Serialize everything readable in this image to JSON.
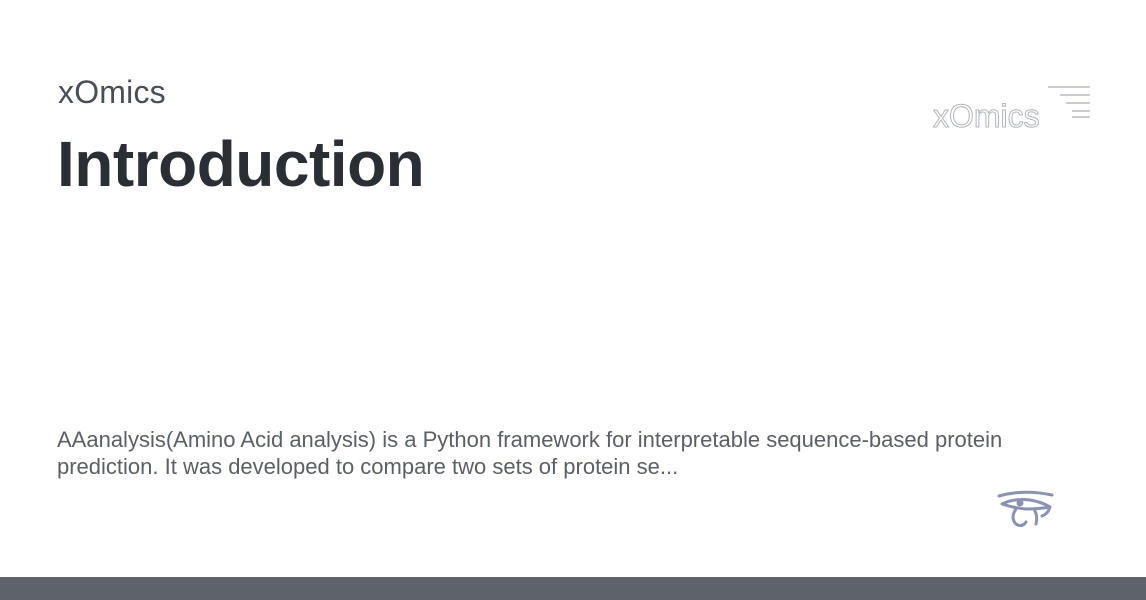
{
  "card": {
    "site_name": "xOmics",
    "title": "Introduction",
    "description": "AAanalysis(Amino Acid analysis) is a Python framework for interpretable sequence-based protein prediction. It was developed to compare two sets of protein se...",
    "logo_text": "xOmics"
  },
  "icons": {
    "logo": "xomics-logo-icon",
    "eye": "eye-of-horus-icon"
  },
  "colors": {
    "title": "#2a2f36",
    "site_name": "#4a4f57",
    "description": "#5b5f66",
    "footer": "#5e626b",
    "eye_icon": "#8a93b0"
  }
}
